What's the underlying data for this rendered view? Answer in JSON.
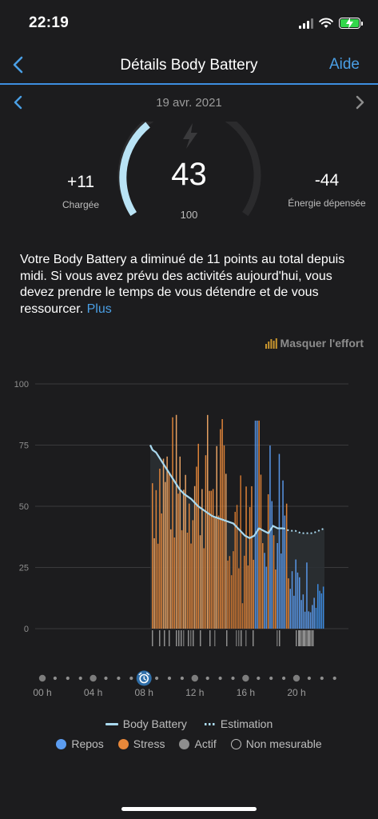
{
  "status_bar": {
    "time": "22:19",
    "icons": [
      "signal-icon",
      "wifi-icon",
      "battery-charging-icon"
    ],
    "battery_color": "#32d74b"
  },
  "nav": {
    "back_icon": "chevron-left-icon",
    "title": "Détails Body Battery",
    "help": "Aide"
  },
  "date_nav": {
    "date": "19 avr. 2021",
    "prev_icon": "chevron-left-icon",
    "next_icon": "chevron-right-icon"
  },
  "gauge": {
    "value": "43",
    "max": "100",
    "level": 0.43,
    "icon": "lightning-bolt-icon"
  },
  "charged": {
    "value": "+11",
    "label": "Chargée"
  },
  "spent": {
    "value": "-44",
    "label": "Énergie dépensée"
  },
  "description": {
    "text": "Votre Body Battery a diminué de 11 points au total depuis midi. Si vous avez prévu des activités aujourd'hui, vous devez prendre le temps de vous détendre et de vous ressourcer.",
    "link": "Plus"
  },
  "effort_toggle": {
    "label": "Masquer l'effort",
    "icon": "bar-chart-icon"
  },
  "colors": {
    "accent": "#4a9fe5",
    "stress": "#e8883a",
    "rest": "#3c8ee8",
    "active": "#8e8e8e",
    "battery_line": "#a9d9ef"
  },
  "chart_data": {
    "type": "line",
    "y_ticks": [
      "100",
      "75",
      "50",
      "25",
      "0"
    ],
    "ylim": [
      0,
      100
    ],
    "body_battery": {
      "x": [
        7.1,
        7.3,
        7.6,
        8.0,
        8.4,
        8.8,
        9.2,
        9.6,
        10.0,
        10.6,
        11.2,
        11.8,
        12.4,
        13.0,
        13.6,
        14.2,
        14.8,
        15.2,
        15.6,
        16.0,
        16.4,
        16.8,
        17.2,
        17.6,
        18.0,
        18.5
      ],
      "y": [
        75,
        73,
        72,
        69,
        66,
        63,
        60,
        57,
        55,
        53,
        50,
        48,
        46,
        45,
        44,
        43,
        40,
        38,
        37,
        38,
        41,
        40,
        39,
        42,
        41,
        41
      ]
    },
    "estimation": {
      "x": [
        18.5,
        19.0,
        19.5,
        20.0,
        20.5,
        21.0,
        21.5,
        22.0
      ],
      "y": [
        41,
        40,
        40,
        39,
        39,
        39,
        40,
        41
      ]
    },
    "x_range": [
      0,
      24
    ]
  },
  "timeline": {
    "labels": [
      "00 h",
      "04 h",
      "08 h",
      "12 h",
      "16 h",
      "20 h"
    ],
    "marker_icon": "alarm-clock-icon"
  },
  "legend": {
    "body_battery": "Body Battery",
    "estimation": "Estimation",
    "rest": "Repos",
    "stress": "Stress",
    "active": "Actif",
    "unmeasurable": "Non mesurable"
  }
}
